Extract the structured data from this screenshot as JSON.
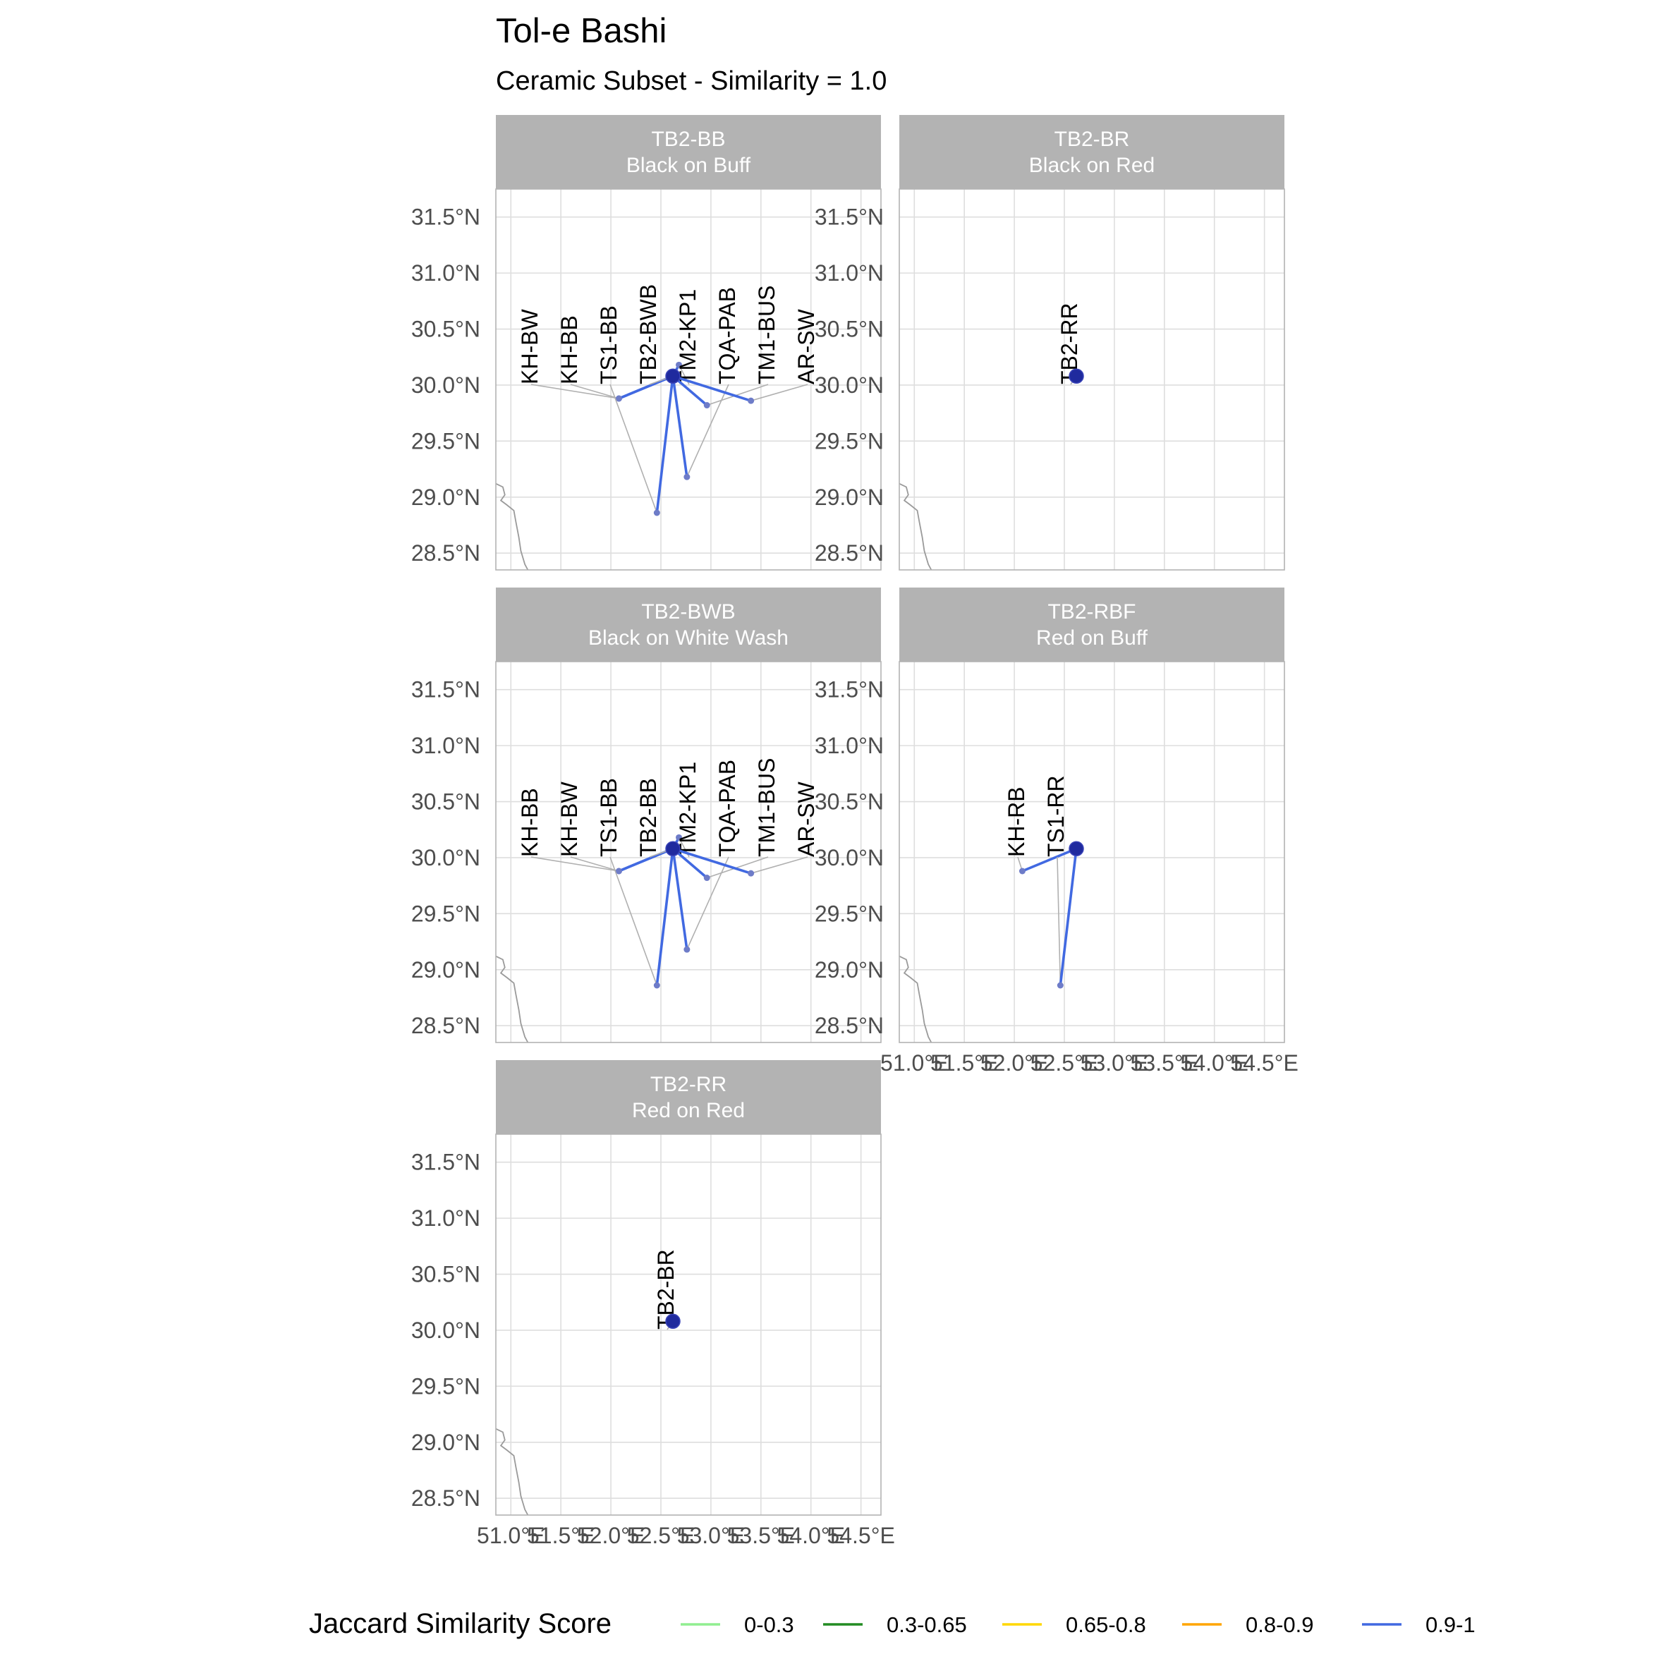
{
  "title": "Tol-e Bashi",
  "subtitle": "Ceramic Subset - Similarity = 1.0",
  "colors": {
    "strip_bg": "#b3b3b3",
    "grid": "#dedede",
    "panel_border": "#b3b3b3",
    "coast": "#9a9a9a",
    "leader": "#b0b0b0",
    "node": "#1f2a9e",
    "site_point": "#6e7cc8"
  },
  "axes": {
    "y_ticks": [
      "31.5°N",
      "31.0°N",
      "30.5°N",
      "30.0°N",
      "29.5°N",
      "29.0°N",
      "28.5°N"
    ],
    "y_values": [
      31.5,
      31.0,
      30.5,
      30.0,
      29.5,
      29.0,
      28.5
    ],
    "x_ticks": [
      "51.0°E",
      "51.5°E",
      "52.0°E",
      "52.5°E",
      "53.0°E",
      "53.5°E",
      "54.0°E",
      "54.5°E"
    ],
    "x_values": [
      51.0,
      51.5,
      52.0,
      52.5,
      53.0,
      53.5,
      54.0,
      54.5
    ],
    "xlim": [
      50.85,
      54.7
    ],
    "ylim": [
      28.35,
      31.75
    ]
  },
  "chart_data": {
    "type": "map-network",
    "center_site": "Tol-e Bashi",
    "center_coord": [
      52.62,
      30.08
    ],
    "panels": [
      {
        "code": "TB2-BB",
        "name": "Black on Buff",
        "sites": [
          {
            "label": "KH-BW",
            "lon": 52.08,
            "lat": 29.88,
            "score": "0.9-1"
          },
          {
            "label": "KH-BB",
            "lon": 52.08,
            "lat": 29.88,
            "score": "0.9-1"
          },
          {
            "label": "TS1-BB",
            "lon": 52.46,
            "lat": 28.86,
            "score": "0.9-1"
          },
          {
            "label": "TB2-BWB",
            "lon": 52.62,
            "lat": 30.08,
            "score": "0.9-1"
          },
          {
            "label": "TM2-KP1",
            "lon": 52.68,
            "lat": 30.18,
            "score": "0.9-1"
          },
          {
            "label": "TQA-PAB",
            "lon": 52.76,
            "lat": 29.18,
            "score": "0.9-1"
          },
          {
            "label": "TM1-BUS",
            "lon": 52.96,
            "lat": 29.82,
            "score": "0.9-1"
          },
          {
            "label": "AR-SW",
            "lon": 53.4,
            "lat": 29.86,
            "score": "0.9-1"
          }
        ]
      },
      {
        "code": "TB2-BR",
        "name": "Black on Red",
        "sites": [
          {
            "label": "TB2-RR",
            "lon": 52.62,
            "lat": 30.08,
            "score": "0.9-1"
          }
        ]
      },
      {
        "code": "TB2-BWB",
        "name": "Black on White Wash",
        "sites": [
          {
            "label": "KH-BB",
            "lon": 52.08,
            "lat": 29.88,
            "score": "0.9-1"
          },
          {
            "label": "KH-BW",
            "lon": 52.08,
            "lat": 29.88,
            "score": "0.9-1"
          },
          {
            "label": "TS1-BB",
            "lon": 52.46,
            "lat": 28.86,
            "score": "0.9-1"
          },
          {
            "label": "TB2-BB",
            "lon": 52.62,
            "lat": 30.08,
            "score": "0.9-1"
          },
          {
            "label": "TM2-KP1",
            "lon": 52.68,
            "lat": 30.18,
            "score": "0.9-1"
          },
          {
            "label": "TQA-PAB",
            "lon": 52.76,
            "lat": 29.18,
            "score": "0.9-1"
          },
          {
            "label": "TM1-BUS",
            "lon": 52.96,
            "lat": 29.82,
            "score": "0.9-1"
          },
          {
            "label": "AR-SW",
            "lon": 53.4,
            "lat": 29.86,
            "score": "0.9-1"
          }
        ]
      },
      {
        "code": "TB2-RBF",
        "name": "Red on Buff",
        "sites": [
          {
            "label": "KH-RB",
            "lon": 52.08,
            "lat": 29.88,
            "score": "0.9-1"
          },
          {
            "label": "TS1-RR",
            "lon": 52.46,
            "lat": 28.86,
            "score": "0.9-1"
          }
        ]
      },
      {
        "code": "TB2-RR",
        "name": "Red on Red",
        "sites": [
          {
            "label": "TB2-BR",
            "lon": 52.62,
            "lat": 30.08,
            "score": "0.9-1"
          }
        ]
      }
    ]
  },
  "legend": {
    "title": "Jaccard Similarity Score",
    "items": [
      {
        "label": "0-0.3",
        "color": "#90ee90"
      },
      {
        "label": "0.3-0.65",
        "color": "#228b22"
      },
      {
        "label": "0.65-0.8",
        "color": "#ffd700"
      },
      {
        "label": "0.8-0.9",
        "color": "#ffa500"
      },
      {
        "label": "0.9-1",
        "color": "#4169e1"
      }
    ]
  }
}
